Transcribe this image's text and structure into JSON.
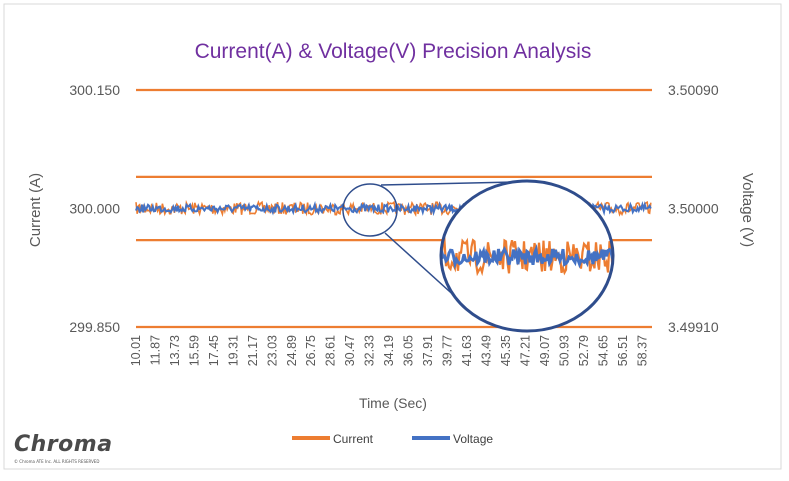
{
  "chart_data": {
    "type": "line",
    "title": "Current(A) & Voltage(V) Precision Analysis",
    "xlabel": "Time (Sec)",
    "ylabel_left": "Current (A)",
    "ylabel_right": "Voltage (V)",
    "ylim_left": [
      299.85,
      300.15
    ],
    "ylim_right": [
      3.4991,
      3.5009
    ],
    "yticks_left": [
      "300.150",
      "300.000",
      "299.850"
    ],
    "yticks_right": [
      "3.50090",
      "3.50000",
      "3.49910"
    ],
    "xticks": [
      "10.01",
      "11.87",
      "13.73",
      "15.59",
      "17.45",
      "19.31",
      "21.17",
      "23.03",
      "24.89",
      "26.75",
      "28.61",
      "30.47",
      "32.33",
      "34.19",
      "36.05",
      "37.91",
      "39.77",
      "41.63",
      "43.49",
      "45.35",
      "47.21",
      "49.07",
      "50.93",
      "52.79",
      "54.65",
      "56.51",
      "58.37"
    ],
    "xlim": [
      10.01,
      59.3
    ],
    "reference_lines_current": [
      300.15,
      300.04,
      299.96,
      299.85
    ],
    "series": [
      {
        "name": "Current",
        "color": "#ED7D31",
        "axis": "left",
        "nominal": 300.0,
        "noise_amplitude": 0.008
      },
      {
        "name": "Voltage",
        "color": "#4472C4",
        "axis": "right",
        "nominal": 3.5,
        "noise_amplitude": 3e-05
      }
    ],
    "legend_position": "bottom",
    "inset": "zoomed view of the signal band"
  },
  "brand": {
    "logo_text": "Chroma",
    "copyright": "© Chroma ATE Inc. ALL RIGHTS RESERVED"
  },
  "colors": {
    "title": "#7030A0",
    "axis_text": "#595959",
    "frame": "#D9D9D9",
    "inset_ring": "#2F4D8C"
  }
}
